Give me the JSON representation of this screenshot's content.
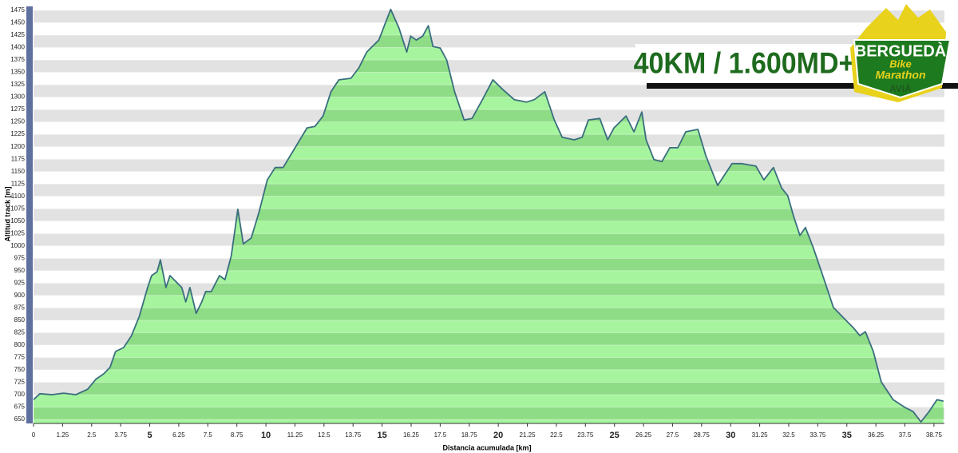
{
  "chart_data": {
    "type": "area",
    "x_label": "Distancia acumulada [km]",
    "y_label": "Altitud track [m]",
    "color": "#a6f59e",
    "line_color": "#3a6e7e",
    "x": [
      0,
      0.27,
      0.79,
      1.3,
      1.82,
      2.33,
      2.68,
      3.02,
      3.29,
      3.53,
      3.88,
      4.22,
      4.56,
      4.91,
      5.08,
      5.32,
      5.46,
      5.7,
      5.87,
      6.11,
      6.38,
      6.55,
      6.73,
      7.0,
      7.24,
      7.41,
      7.65,
      8.0,
      8.24,
      8.51,
      8.79,
      9.03,
      9.37,
      9.71,
      10.06,
      10.4,
      10.74,
      11.26,
      11.77,
      12.11,
      12.46,
      12.8,
      13.14,
      13.66,
      14.0,
      14.34,
      14.86,
      15.13,
      15.37,
      15.72,
      16.06,
      16.23,
      16.47,
      16.75,
      16.99,
      17.19,
      17.5,
      17.78,
      18.12,
      18.53,
      18.87,
      19.32,
      19.77,
      20.18,
      20.69,
      21.21,
      21.55,
      22.0,
      22.41,
      22.75,
      23.27,
      23.61,
      23.88,
      24.37,
      24.71,
      24.98,
      25.5,
      25.84,
      26.18,
      26.36,
      26.7,
      27.04,
      27.38,
      27.73,
      28.07,
      28.59,
      28.93,
      29.44,
      30.06,
      30.47,
      31.09,
      31.43,
      31.84,
      32.19,
      32.46,
      32.7,
      32.98,
      33.22,
      33.56,
      34.08,
      34.42,
      34.94,
      35.28,
      35.56,
      35.8,
      36.14,
      36.48,
      36.99,
      37.51,
      37.85,
      38.19,
      38.54,
      38.88,
      39.16
    ],
    "values": [
      690,
      702,
      700,
      703,
      700,
      711,
      731,
      742,
      755,
      787,
      795,
      819,
      859,
      916,
      940,
      948,
      972,
      916,
      940,
      929,
      916,
      887,
      916,
      864,
      887,
      908,
      908,
      940,
      932,
      980,
      1074,
      1004,
      1016,
      1069,
      1133,
      1158,
      1158,
      1198,
      1238,
      1241,
      1262,
      1311,
      1335,
      1338,
      1359,
      1391,
      1415,
      1448,
      1477,
      1440,
      1391,
      1423,
      1415,
      1423,
      1444,
      1402,
      1399,
      1375,
      1311,
      1254,
      1257,
      1295,
      1335,
      1316,
      1295,
      1290,
      1295,
      1311,
      1254,
      1219,
      1214,
      1219,
      1254,
      1257,
      1214,
      1238,
      1262,
      1230,
      1270,
      1214,
      1174,
      1170,
      1198,
      1198,
      1230,
      1235,
      1182,
      1122,
      1166,
      1166,
      1161,
      1133,
      1158,
      1117,
      1101,
      1061,
      1021,
      1037,
      996,
      924,
      876,
      851,
      835,
      819,
      827,
      787,
      726,
      690,
      674,
      666,
      645,
      666,
      690,
      687
    ],
    "xlim": [
      0,
      39.2
    ],
    "ylim": [
      642,
      1483
    ],
    "xticks": [
      0,
      1.25,
      2.5,
      3.75,
      5,
      6.25,
      7.5,
      8.75,
      10,
      11.25,
      12.5,
      13.75,
      15,
      16.25,
      17.5,
      18.75,
      20,
      21.25,
      22.5,
      23.75,
      25,
      26.25,
      27.5,
      28.75,
      30,
      31.25,
      32.5,
      33.75,
      35,
      36.25,
      37.5,
      38.75
    ],
    "yticks": [
      650,
      675,
      700,
      725,
      750,
      775,
      800,
      825,
      850,
      875,
      900,
      925,
      950,
      975,
      1000,
      1025,
      1050,
      1075,
      1100,
      1125,
      1150,
      1175,
      1200,
      1225,
      1250,
      1275,
      1300,
      1325,
      1350,
      1375,
      1400,
      1425,
      1450,
      1475
    ],
    "grid": true,
    "badge": "40KM / 1.600MD+",
    "logo": {
      "name": "BERGUEDÀ",
      "line1": "Bike",
      "line2": "Marathon",
      "place": "AVIÀ"
    }
  }
}
